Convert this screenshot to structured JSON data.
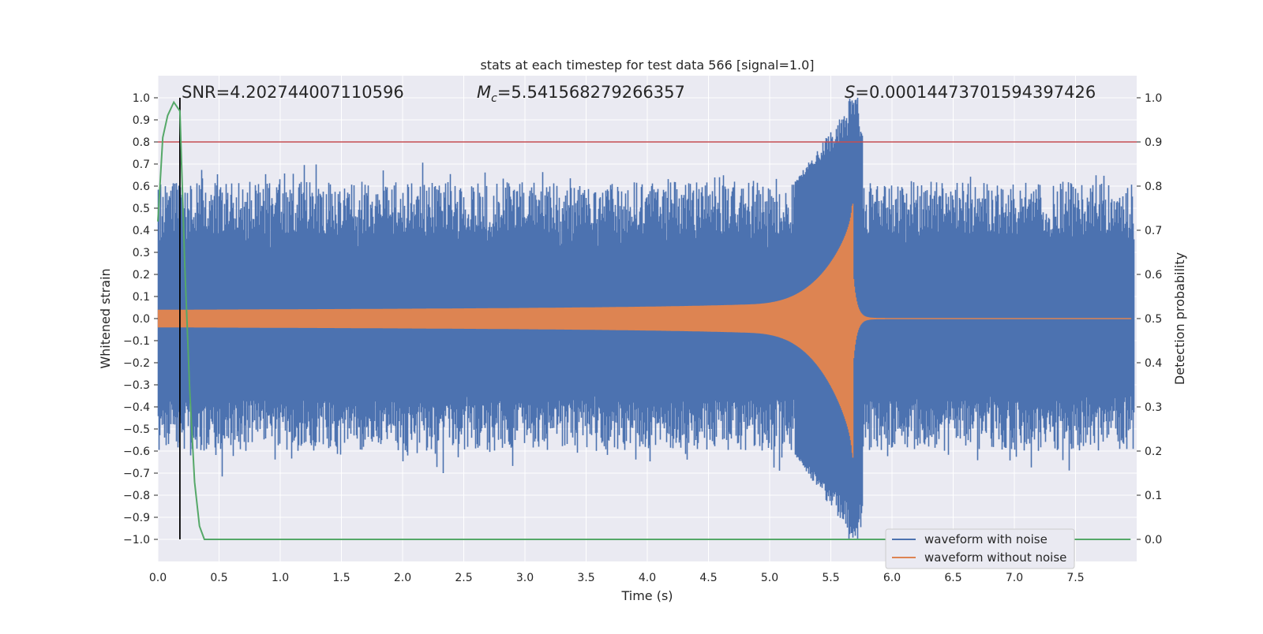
{
  "chart_data": {
    "type": "line",
    "title": "stats at each timestep for test data 566 [signal=1.0]",
    "xlabel": "Time (s)",
    "ylabel": "Whitened strain",
    "y2label": "Detection probability",
    "xlim": [
      0.0,
      8.0
    ],
    "ylim": [
      -1.1,
      1.1
    ],
    "y2lim": [
      -0.05,
      1.05
    ],
    "x_ticks": [
      "0.0",
      "0.5",
      "1.0",
      "1.5",
      "2.0",
      "2.5",
      "3.0",
      "3.5",
      "4.0",
      "4.5",
      "5.0",
      "5.5",
      "6.0",
      "6.5",
      "7.0",
      "7.5"
    ],
    "y_ticks": [
      "1.0",
      "0.9",
      "0.8",
      "0.7",
      "0.6",
      "0.5",
      "0.4",
      "0.3",
      "0.2",
      "0.1",
      "0.0",
      "−0.1",
      "−0.2",
      "−0.3",
      "−0.4",
      "−0.5",
      "−0.6",
      "−0.7",
      "−0.8",
      "−0.9",
      "−1.0"
    ],
    "y2_ticks": [
      "1.0",
      "0.9",
      "0.8",
      "0.7",
      "0.6",
      "0.5",
      "0.4",
      "0.3",
      "0.2",
      "0.1",
      "0.0"
    ],
    "grid": true,
    "legend_position": "bottom-right",
    "annotations": {
      "snr": "SNR=4.202744007110596",
      "mc_symbol": "M",
      "mc_sub": "c",
      "mc_value": "=5.541568279266357",
      "s_symbol": "S",
      "s_value": "=0.00014473701594397426"
    },
    "threshold": {
      "y": 0.8,
      "color": "#c44e52"
    },
    "marker_time": 0.18,
    "series": [
      {
        "name": "waveform with noise",
        "color": "#4c72b0",
        "envelope_upper": 0.62,
        "envelope_lower": -0.6,
        "peak_time": 5.68,
        "peak_high": 1.0,
        "peak_low": -1.0
      },
      {
        "name": "waveform without noise",
        "color": "#dd8452",
        "start_amplitude": 0.04,
        "merger_time": 5.68,
        "merger_high": 0.52,
        "merger_low": -0.63
      },
      {
        "color": "#55a868",
        "x": [
          0.0,
          0.04,
          0.08,
          0.13,
          0.18,
          0.22,
          0.26,
          0.3,
          0.34,
          0.38,
          0.42,
          1.0,
          2.0,
          3.0,
          4.0,
          5.0,
          6.0,
          7.0,
          7.95
        ],
        "y": [
          0.72,
          0.91,
          0.96,
          0.99,
          0.97,
          0.62,
          0.34,
          0.13,
          0.03,
          0.0,
          0.0,
          0.0,
          0.0,
          0.0,
          0.0,
          0.0,
          0.0,
          0.0,
          0.0
        ]
      }
    ],
    "colors": {
      "background": "#eaeaf2",
      "grid": "#ffffff",
      "text": "#262626",
      "marker": "#000000"
    }
  }
}
